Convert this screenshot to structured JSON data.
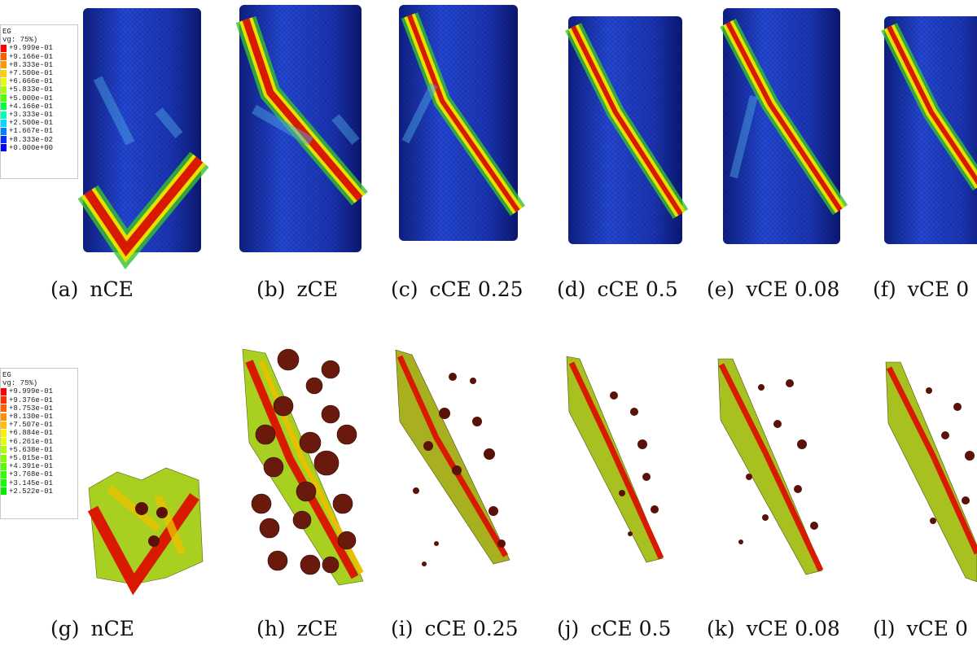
{
  "top_legend": {
    "title": "EG",
    "subtitle": "vg: 75%)",
    "values": [
      "+9.999e-01",
      "+9.166e-01",
      "+8.333e-01",
      "+7.500e-01",
      "+6.666e-01",
      "+5.833e-01",
      "+5.000e-01",
      "+4.166e-01",
      "+3.333e-01",
      "+2.500e-01",
      "+1.667e-01",
      "+8.333e-02",
      "+0.000e+00"
    ],
    "colors": [
      "#ff0000",
      "#ff5a00",
      "#ff9900",
      "#ffd000",
      "#e8ff00",
      "#a8ff00",
      "#50ff00",
      "#00ff40",
      "#00ffb0",
      "#00d8ff",
      "#0080ff",
      "#0030ff",
      "#0000ff"
    ]
  },
  "bottom_legend": {
    "title": "EG",
    "subtitle": "vg: 75%)",
    "values": [
      "+9.999e-01",
      "+9.376e-01",
      "+8.753e-01",
      "+8.130e-01",
      "+7.507e-01",
      "+6.884e-01",
      "+6.261e-01",
      "+5.638e-01",
      "+5.015e-01",
      "+4.391e-01",
      "+3.768e-01",
      "+3.145e-01",
      "+2.522e-01"
    ],
    "colors": [
      "#ff0000",
      "#ff3000",
      "#ff6000",
      "#ff9000",
      "#ffc000",
      "#fff000",
      "#e0ff00",
      "#b0ff00",
      "#80ff00",
      "#50ff00",
      "#30ff00",
      "#10ff00",
      "#00f000"
    ]
  },
  "panels_top": [
    {
      "tag": "(a)",
      "label": "nCE"
    },
    {
      "tag": "(b)",
      "label": "zCE"
    },
    {
      "tag": "(c)",
      "label": "cCE 0.25"
    },
    {
      "tag": "(d)",
      "label": "cCE 0.5"
    },
    {
      "tag": "(e)",
      "label": "vCE 0.08"
    },
    {
      "tag": "(f)",
      "label": "vCE 0"
    }
  ],
  "panels_bottom": [
    {
      "tag": "(g)",
      "label": "nCE"
    },
    {
      "tag": "(h)",
      "label": "zCE"
    },
    {
      "tag": "(i)",
      "label": "cCE 0.25"
    },
    {
      "tag": "(j)",
      "label": "cCE 0.5"
    },
    {
      "tag": "(k)",
      "label": "vCE 0.08"
    },
    {
      "tag": "(l)",
      "label": "vCE 0"
    }
  ],
  "colors": {
    "cylinder_blue": "#1f3fc8",
    "band_red": "#d81a00",
    "band_yellow": "#e8e000",
    "band_green": "#38c030",
    "frag_dark": "#5a1208"
  }
}
